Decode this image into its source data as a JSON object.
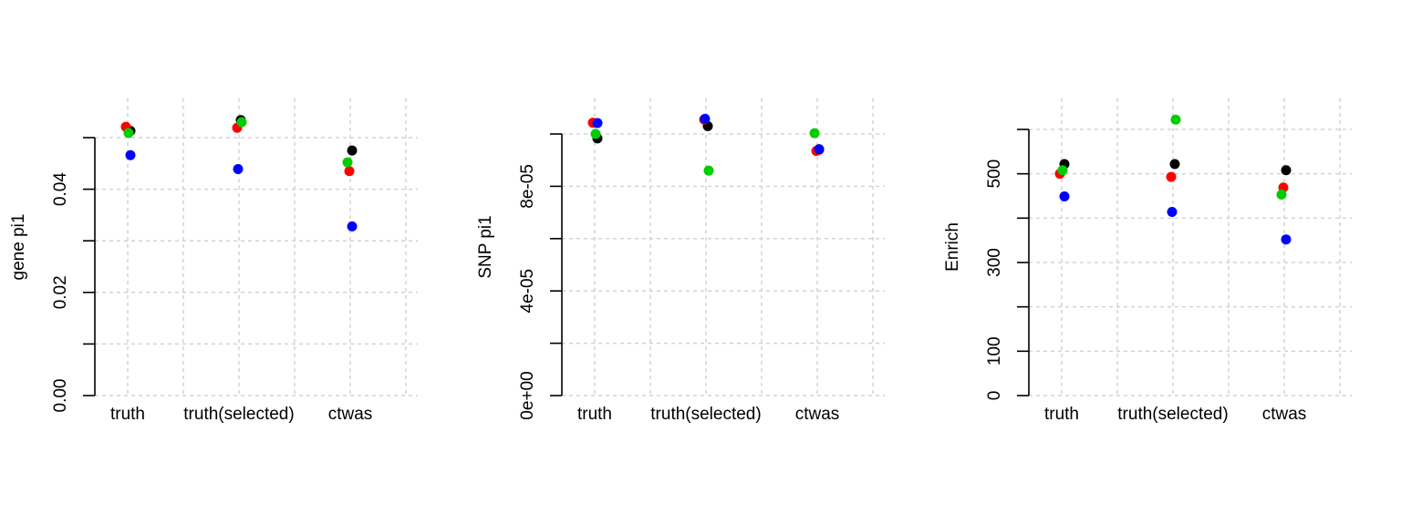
{
  "colors": {
    "series1": "#000000",
    "series2": "#ff0000",
    "series3": "#00cd00",
    "series4": "#0000ff",
    "grid": "#d3d3d3"
  },
  "chart_data": [
    {
      "type": "scatter",
      "ylabel": "gene pi1",
      "xlabel": "",
      "categories": [
        "truth",
        "truth(selected)",
        "ctwas"
      ],
      "ylim": [
        0,
        0.05
      ],
      "yticks": [
        0,
        0.01,
        0.02,
        0.03,
        0.04,
        0.05
      ],
      "ytick_labels": [
        "0.00",
        "",
        "0.02",
        "",
        "0.04",
        ""
      ],
      "grid": true,
      "points": [
        {
          "category": "truth",
          "series": 1,
          "y": 0.0513
        },
        {
          "category": "truth",
          "series": 2,
          "y": 0.0521
        },
        {
          "category": "truth",
          "series": 3,
          "y": 0.0509
        },
        {
          "category": "truth",
          "series": 4,
          "y": 0.0466
        },
        {
          "category": "truth(selected)",
          "series": 1,
          "y": 0.0534
        },
        {
          "category": "truth(selected)",
          "series": 2,
          "y": 0.0519
        },
        {
          "category": "truth(selected)",
          "series": 3,
          "y": 0.053
        },
        {
          "category": "truth(selected)",
          "series": 4,
          "y": 0.0439
        },
        {
          "category": "ctwas",
          "series": 1,
          "y": 0.0475
        },
        {
          "category": "ctwas",
          "series": 2,
          "y": 0.0435
        },
        {
          "category": "ctwas",
          "series": 3,
          "y": 0.0452
        },
        {
          "category": "ctwas",
          "series": 4,
          "y": 0.0328
        }
      ]
    },
    {
      "type": "scatter",
      "ylabel": "SNP pi1",
      "xlabel": "",
      "categories": [
        "truth",
        "truth(selected)",
        "ctwas"
      ],
      "ylim": [
        0,
        0.0001
      ],
      "yticks": [
        0,
        2e-05,
        4e-05,
        6e-05,
        8e-05,
        0.0001
      ],
      "ytick_labels": [
        "0e+00",
        "",
        "4e-05",
        "",
        "8e-05",
        ""
      ],
      "grid": true,
      "points": [
        {
          "category": "truth",
          "series": 1,
          "y": 9.83e-05
        },
        {
          "category": "truth",
          "series": 2,
          "y": 0.0001043
        },
        {
          "category": "truth",
          "series": 3,
          "y": 0.0001
        },
        {
          "category": "truth",
          "series": 4,
          "y": 0.0001042
        },
        {
          "category": "truth(selected)",
          "series": 1,
          "y": 0.000103
        },
        {
          "category": "truth(selected)",
          "series": 2,
          "y": 0.0001055
        },
        {
          "category": "truth(selected)",
          "series": 3,
          "y": 8.6e-05
        },
        {
          "category": "truth(selected)",
          "series": 4,
          "y": 0.0001058
        },
        {
          "category": "ctwas",
          "series": 1,
          "y": 9.4e-05
        },
        {
          "category": "ctwas",
          "series": 2,
          "y": 9.35e-05
        },
        {
          "category": "ctwas",
          "series": 3,
          "y": 0.0001003
        },
        {
          "category": "ctwas",
          "series": 4,
          "y": 9.42e-05
        }
      ]
    },
    {
      "type": "scatter",
      "ylabel": "Enrich",
      "xlabel": "",
      "categories": [
        "truth",
        "truth(selected)",
        "ctwas"
      ],
      "ylim": [
        0,
        600
      ],
      "yticks": [
        0,
        100,
        200,
        300,
        400,
        500,
        600
      ],
      "ytick_labels": [
        "0",
        "100",
        "",
        "300",
        "",
        "500",
        ""
      ],
      "grid": true,
      "points": [
        {
          "category": "truth",
          "series": 1,
          "y": 522
        },
        {
          "category": "truth",
          "series": 2,
          "y": 500
        },
        {
          "category": "truth",
          "series": 3,
          "y": 508
        },
        {
          "category": "truth",
          "series": 4,
          "y": 449
        },
        {
          "category": "truth(selected)",
          "series": 1,
          "y": 522
        },
        {
          "category": "truth(selected)",
          "series": 2,
          "y": 493
        },
        {
          "category": "truth(selected)",
          "series": 3,
          "y": 622
        },
        {
          "category": "truth(selected)",
          "series": 4,
          "y": 414
        },
        {
          "category": "ctwas",
          "series": 1,
          "y": 508
        },
        {
          "category": "ctwas",
          "series": 2,
          "y": 469
        },
        {
          "category": "ctwas",
          "series": 3,
          "y": 453
        },
        {
          "category": "ctwas",
          "series": 4,
          "y": 352
        }
      ]
    }
  ]
}
